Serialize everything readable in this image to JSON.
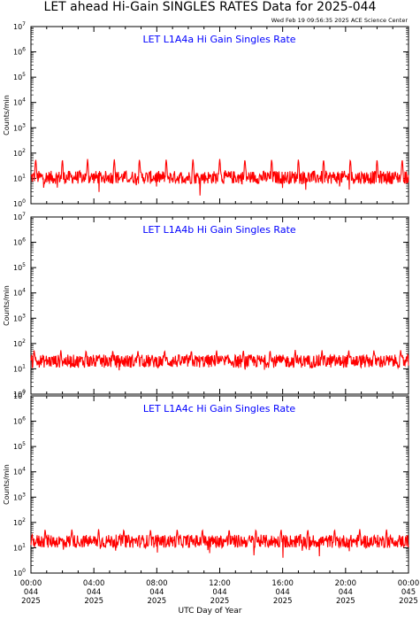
{
  "title": "LET ahead Hi-Gain SINGLES RATES Data for 2025-044",
  "generated": "Wed Feb 19 09:56:35 2025 ACE Science Center",
  "colors": {
    "series": "#ff0000",
    "panel_label": "#0000ff",
    "axes": "#000000"
  },
  "x_axis": {
    "label": "UTC Day of Year",
    "ticks": [
      {
        "time": "00:00",
        "day": "044",
        "year": "2025"
      },
      {
        "time": "04:00",
        "day": "044",
        "year": "2025"
      },
      {
        "time": "08:00",
        "day": "044",
        "year": "2025"
      },
      {
        "time": "12:00",
        "day": "044",
        "year": "2025"
      },
      {
        "time": "16:00",
        "day": "044",
        "year": "2025"
      },
      {
        "time": "20:00",
        "day": "044",
        "year": "2025"
      },
      {
        "time": "00:00",
        "day": "045",
        "year": "2025"
      }
    ]
  },
  "chart_data": [
    {
      "type": "line",
      "panel_label": "LET L1A4a Hi Gain Singles Rate",
      "ylabel": "Counts/min",
      "yscale": "log",
      "ylim": [
        1,
        10000000
      ],
      "y_ticks": [
        {
          "base": "10",
          "exp": "0"
        },
        {
          "base": "10",
          "exp": "1"
        },
        {
          "base": "10",
          "exp": "2"
        },
        {
          "base": "10",
          "exp": "3"
        },
        {
          "base": "10",
          "exp": "4"
        },
        {
          "base": "10",
          "exp": "5"
        },
        {
          "base": "10",
          "exp": "6"
        },
        {
          "base": "10",
          "exp": "7"
        }
      ],
      "xlim_hours": [
        0,
        24
      ],
      "baseline": 11,
      "range": [
        2,
        60
      ],
      "spike_hours": [
        0.3,
        2.0,
        3.6,
        5.3,
        6.9,
        8.6,
        10.3,
        12.0,
        13.6,
        15.3,
        17.0,
        18.6,
        20.3,
        22.0,
        23.6
      ],
      "spike_value": 55,
      "note": "Noisy signal fluctuating around the baseline with periodic spikes; values read as approximate."
    },
    {
      "type": "line",
      "panel_label": "LET L1A4b Hi Gain Singles Rate",
      "ylabel": "Counts/min",
      "yscale": "log",
      "ylim": [
        1,
        10000000
      ],
      "y_ticks": [
        {
          "base": "10",
          "exp": "0"
        },
        {
          "base": "10",
          "exp": "1"
        },
        {
          "base": "10",
          "exp": "2"
        },
        {
          "base": "10",
          "exp": "3"
        },
        {
          "base": "10",
          "exp": "4"
        },
        {
          "base": "10",
          "exp": "5"
        },
        {
          "base": "10",
          "exp": "6"
        },
        {
          "base": "10",
          "exp": "7"
        }
      ],
      "xlim_hours": [
        0,
        24
      ],
      "baseline": 20,
      "range": [
        8,
        55
      ],
      "spike_hours": [
        0.2,
        1.9,
        3.5,
        5.2,
        6.8,
        8.5,
        10.2,
        11.8,
        13.5,
        15.2,
        16.8,
        18.5,
        20.2,
        21.8,
        23.5
      ],
      "spike_value": 50,
      "note": "Noisy signal fluctuating around the baseline with periodic spikes; values read as approximate."
    },
    {
      "type": "line",
      "panel_label": "LET L1A4c Hi Gain Singles Rate",
      "ylabel": "Counts/min",
      "yscale": "log",
      "ylim": [
        1,
        10000000
      ],
      "y_ticks": [
        {
          "base": "10",
          "exp": "0"
        },
        {
          "base": "10",
          "exp": "1"
        },
        {
          "base": "10",
          "exp": "2"
        },
        {
          "base": "10",
          "exp": "3"
        },
        {
          "base": "10",
          "exp": "4"
        },
        {
          "base": "10",
          "exp": "5"
        },
        {
          "base": "10",
          "exp": "6"
        },
        {
          "base": "10",
          "exp": "7"
        }
      ],
      "xlim_hours": [
        0,
        24
      ],
      "baseline": 18,
      "range": [
        4,
        60
      ],
      "spike_hours": [
        0.9,
        2.6,
        4.3,
        5.9,
        7.6,
        9.3,
        10.9,
        12.6,
        14.3,
        15.9,
        17.6,
        19.3,
        20.9,
        22.6
      ],
      "spike_value": 50,
      "note": "Noisy signal fluctuating around the baseline with periodic spikes; values read as approximate."
    }
  ]
}
